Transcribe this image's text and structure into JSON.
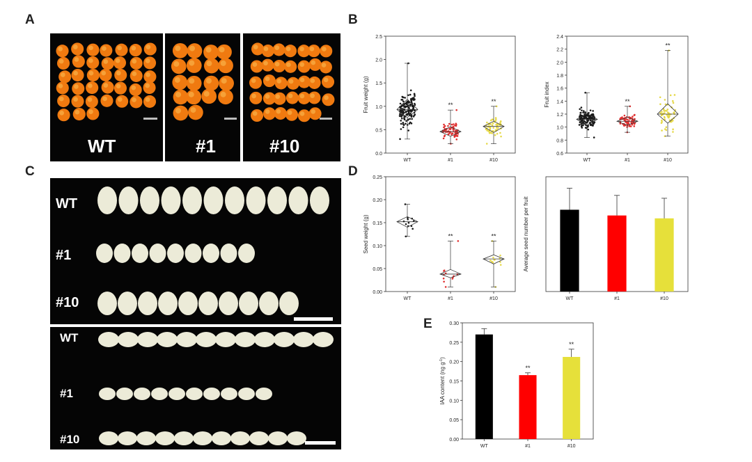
{
  "figure": {
    "panel_letters": {
      "A": "A",
      "B": "B",
      "C": "C",
      "D": "D",
      "E": "E"
    },
    "panel_a": {
      "labels": [
        "WT",
        "#1",
        "#10"
      ],
      "fruit_color": "#f07a10",
      "background_color": "#050505"
    },
    "panel_c": {
      "top_labels": [
        "WT",
        "#1",
        "#10"
      ],
      "bottom_labels": [
        "WT",
        "#1",
        "#10"
      ],
      "seed_color": "#ecebd8"
    }
  },
  "chart_data": [
    {
      "id": "fruit-weight",
      "type": "scatter",
      "style": "box-diamond",
      "categories": [
        "WT",
        "#1",
        "#10"
      ],
      "colors": [
        "#1a1a1a",
        "#e03030",
        "#e6d94a"
      ],
      "ylabel": "Fruit weight (g)",
      "ylim": [
        0,
        2.5
      ],
      "yticks": [
        0.0,
        0.5,
        1.0,
        1.5,
        2.0,
        2.5
      ],
      "ytick_labels": [
        "0.0",
        "0.5",
        "1.0",
        "1.5",
        "2.0",
        "2.5"
      ],
      "series": [
        {
          "name": "WT",
          "mean": 0.93,
          "q1": 0.76,
          "q3": 1.15,
          "min": 0.3,
          "max": 1.92,
          "n": 150,
          "sig": ""
        },
        {
          "name": "#1",
          "mean": 0.46,
          "q1": 0.36,
          "q3": 0.56,
          "min": 0.2,
          "max": 0.92,
          "n": 70,
          "sig": "**"
        },
        {
          "name": "#10",
          "mean": 0.57,
          "q1": 0.44,
          "q3": 0.68,
          "min": 0.2,
          "max": 1.0,
          "n": 60,
          "sig": "**"
        }
      ]
    },
    {
      "id": "fruit-index",
      "type": "scatter",
      "style": "box-diamond",
      "categories": [
        "WT",
        "#1",
        "#10"
      ],
      "colors": [
        "#1a1a1a",
        "#e03030",
        "#e6d94a"
      ],
      "ylabel": "Fruit index",
      "ylim": [
        0.6,
        2.4
      ],
      "yticks": [
        0.6,
        0.8,
        1.0,
        1.2,
        1.4,
        1.6,
        1.8,
        2.0,
        2.2,
        2.4
      ],
      "ytick_labels": [
        "0.6",
        "0.8",
        "1.0",
        "1.2",
        "1.4",
        "1.6",
        "1.8",
        "2.0",
        "2.2",
        "2.4"
      ],
      "series": [
        {
          "name": "WT",
          "mean": 1.12,
          "q1": 1.03,
          "q3": 1.21,
          "min": 0.84,
          "max": 1.53,
          "n": 150,
          "sig": ""
        },
        {
          "name": "#1",
          "mean": 1.09,
          "q1": 1.03,
          "q3": 1.15,
          "min": 0.92,
          "max": 1.32,
          "n": 70,
          "sig": "**"
        },
        {
          "name": "#10",
          "mean": 1.2,
          "q1": 1.06,
          "q3": 1.36,
          "min": 0.86,
          "max": 2.18,
          "n": 60,
          "sig": "**"
        }
      ]
    },
    {
      "id": "seed-weight",
      "type": "scatter",
      "style": "box-diamond",
      "categories": [
        "WT",
        "#1",
        "#10"
      ],
      "colors": [
        "#1a1a1a",
        "#e03030",
        "#e6d94a"
      ],
      "ylabel": "Seed weight (g)",
      "ylim": [
        0,
        0.25
      ],
      "yticks": [
        0.0,
        0.05,
        0.1,
        0.15,
        0.2,
        0.25
      ],
      "ytick_labels": [
        "0.00",
        "0.05",
        "0.10",
        "0.15",
        "0.20",
        "0.25"
      ],
      "series": [
        {
          "name": "WT",
          "mean": 0.152,
          "q1": 0.14,
          "q3": 0.163,
          "min": 0.12,
          "max": 0.19,
          "n": 12,
          "sig": ""
        },
        {
          "name": "#1",
          "mean": 0.038,
          "q1": 0.03,
          "q3": 0.048,
          "min": 0.01,
          "max": 0.11,
          "n": 12,
          "sig": "**"
        },
        {
          "name": "#10",
          "mean": 0.071,
          "q1": 0.06,
          "q3": 0.08,
          "min": 0.01,
          "max": 0.11,
          "n": 12,
          "sig": "**"
        }
      ]
    },
    {
      "id": "seed-number",
      "type": "bar",
      "categories": [
        "WT",
        "#1",
        "#10"
      ],
      "colors": [
        "#000000",
        "#ff0000",
        "#e6e03a"
      ],
      "ylabel": "Average seed number per fruit",
      "ylim": [
        0,
        4
      ],
      "values": [
        2.85,
        2.65,
        2.55
      ],
      "errors": [
        0.75,
        0.7,
        0.7
      ],
      "sig": [
        "",
        "",
        ""
      ]
    },
    {
      "id": "iaa-content",
      "type": "bar",
      "categories": [
        "WT",
        "#1",
        "#10"
      ],
      "colors": [
        "#000000",
        "#ff0000",
        "#e6e03a"
      ],
      "ylabel": "IAA content (ng g",
      "ylabel_sup": "-1",
      "ylabel_end": ")",
      "ylim": [
        0,
        0.3
      ],
      "yticks": [
        0.0,
        0.05,
        0.1,
        0.15,
        0.2,
        0.25,
        0.3
      ],
      "ytick_labels": [
        "0.00",
        "0.05",
        "0.10",
        "0.15",
        "0.20",
        "0.25",
        "0.30"
      ],
      "values": [
        0.27,
        0.165,
        0.212
      ],
      "errors": [
        0.015,
        0.006,
        0.02
      ],
      "sig": [
        "",
        "**",
        "**"
      ]
    }
  ]
}
